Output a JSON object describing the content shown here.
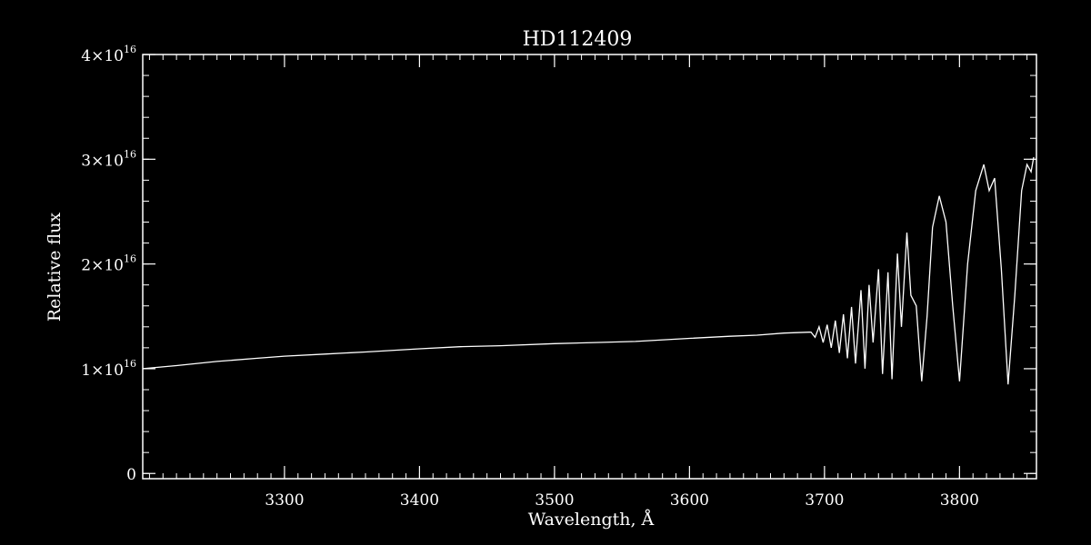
{
  "chart_data": {
    "type": "line",
    "title": "HD112409",
    "xlabel": "Wavelength, Å",
    "ylabel": "Relative flux",
    "xlim": [
      3195,
      3857
    ],
    "ylim": [
      -500000000000000.0,
      4e+16
    ],
    "x_major_ticks": [
      3300,
      3400,
      3500,
      3600,
      3700,
      3800
    ],
    "x_tick_labels": [
      "3300",
      "3400",
      "3500",
      "3600",
      "3700",
      "3800"
    ],
    "x_minor_step": 10,
    "y_major_ticks": [
      0,
      1e+16,
      2e+16,
      3e+16,
      4e+16
    ],
    "y_tick_labels": [
      {
        "text": "0",
        "mantissa": "",
        "exponent": ""
      },
      {
        "text": "",
        "mantissa": "1×10",
        "exponent": "16"
      },
      {
        "text": "",
        "mantissa": "2×10",
        "exponent": "16"
      },
      {
        "text": "",
        "mantissa": "3×10",
        "exponent": "16"
      },
      {
        "text": "",
        "mantissa": "4×10",
        "exponent": "16"
      }
    ],
    "y_minor_step": 2000000000000000.0,
    "grid": false,
    "colors": {
      "background": "#000000",
      "foreground": "#ffffff"
    },
    "series": [
      {
        "x": [
          3195,
          3220,
          3250,
          3280,
          3300,
          3330,
          3360,
          3400,
          3430,
          3460,
          3500,
          3530,
          3560,
          3600,
          3630,
          3650,
          3670,
          3690,
          3693,
          3696,
          3699,
          3702,
          3705,
          3708,
          3711,
          3714,
          3717,
          3720,
          3723,
          3727,
          3730,
          3733,
          3736,
          3740,
          3743,
          3747,
          3750,
          3754,
          3757,
          3761,
          3764,
          3768,
          3772,
          3776,
          3780,
          3785,
          3790,
          3795,
          3800,
          3806,
          3812,
          3818,
          3822,
          3826,
          3831,
          3836,
          3841,
          3846,
          3850,
          3853,
          3855
        ],
        "y": [
          1e+16,
          1.03e+16,
          1.07e+16,
          1.1e+16,
          1.12e+16,
          1.14e+16,
          1.16e+16,
          1.19e+16,
          1.21e+16,
          1.22e+16,
          1.24e+16,
          1.25e+16,
          1.26e+16,
          1.29e+16,
          1.31e+16,
          1.32e+16,
          1.34e+16,
          1.35e+16,
          1.3e+16,
          1.4e+16,
          1.25e+16,
          1.42e+16,
          1.2e+16,
          1.46e+16,
          1.15e+16,
          1.52e+16,
          1.1e+16,
          1.59e+16,
          1.05e+16,
          1.75e+16,
          1e+16,
          1.8e+16,
          1.25e+16,
          1.95e+16,
          9500000000000000.0,
          1.92e+16,
          9000000000000000.0,
          2.1e+16,
          1.4e+16,
          2.3e+16,
          1.7e+16,
          1.6e+16,
          8800000000000000.0,
          1.5e+16,
          2.35e+16,
          2.65e+16,
          2.4e+16,
          1.6e+16,
          8800000000000000.0,
          2e+16,
          2.7e+16,
          2.95e+16,
          2.7e+16,
          2.82e+16,
          1.95e+16,
          8500000000000000.0,
          1.7e+16,
          2.7e+16,
          2.95e+16,
          2.88e+16,
          3.02e+16
        ]
      }
    ]
  }
}
